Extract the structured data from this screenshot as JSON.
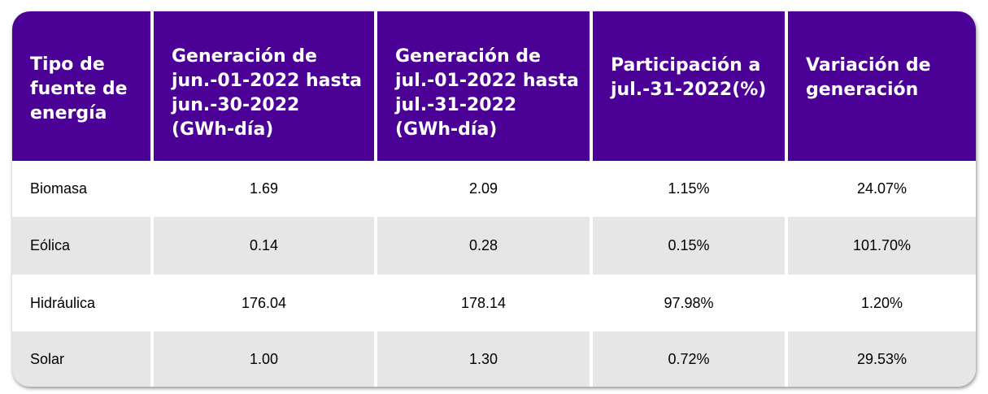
{
  "headers": [
    "Tipo de fuente de energía",
    "Generación de jun.-01-2022 hasta jun.-30-2022 (GWh-día)",
    "Generación de jul.-01-2022 hasta jul.-31-2022 (GWh-día)",
    "Participación a jul.-31-2022(%)",
    "Variación de generación"
  ],
  "rows": [
    [
      "Biomasa",
      "1.69",
      "2.09",
      "1.15%",
      "24.07%"
    ],
    [
      "Eólica",
      "0.14",
      "0.28",
      "0.15%",
      "101.70%"
    ],
    [
      "Hidráulica",
      "176.04",
      "178.14",
      "97.98%",
      "1.20%"
    ],
    [
      "Solar",
      "1.00",
      "1.30",
      "0.72%",
      "29.53%"
    ]
  ],
  "colors": {
    "header_bg": "#4b0096",
    "header_text": "#ffffff",
    "row_alt_bg": "#e6e6e6"
  }
}
